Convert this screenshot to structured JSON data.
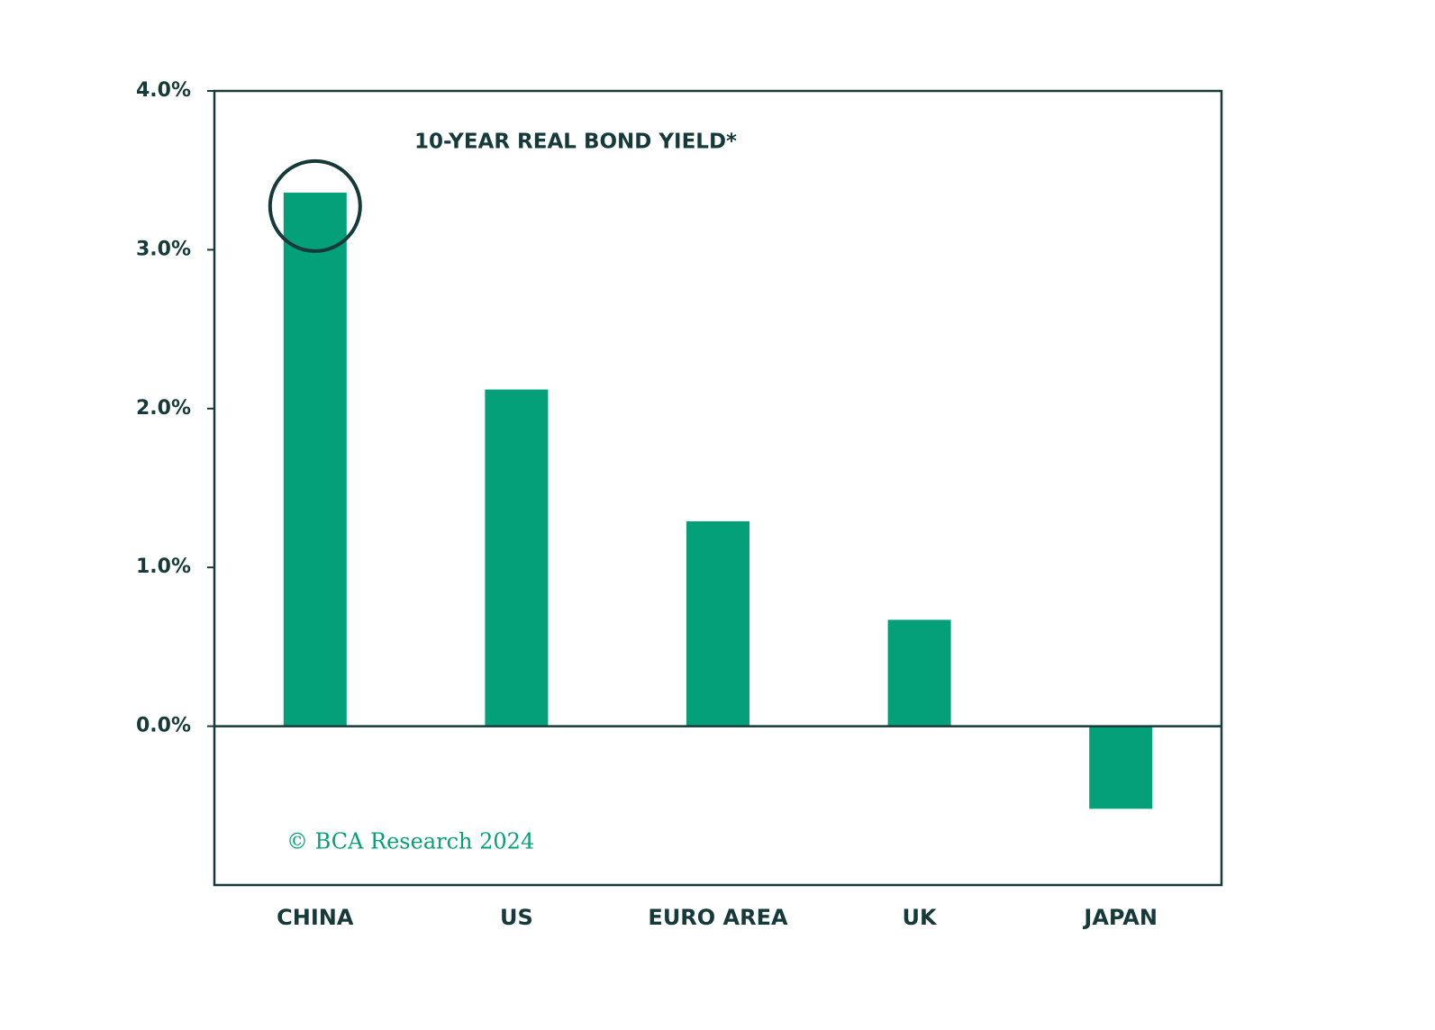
{
  "chart_data": {
    "type": "bar",
    "title": "10-YEAR REAL BOND YIELD*",
    "categories": [
      "CHINA",
      "US",
      "EURO AREA",
      "UK",
      "JAPAN"
    ],
    "values": [
      3.36,
      2.12,
      1.29,
      0.67,
      -0.52
    ],
    "color": "#04a07a",
    "ylim": [
      -1,
      4
    ],
    "yticks": [
      {
        "value": 0,
        "label": "0.0%"
      },
      {
        "value": 1,
        "label": "1.0%"
      },
      {
        "value": 2,
        "label": "2.0%"
      },
      {
        "value": 3,
        "label": "3.0%"
      },
      {
        "value": 4,
        "label": "4.0%"
      }
    ],
    "grid": false,
    "watermark": "© BCA Research 2024"
  }
}
